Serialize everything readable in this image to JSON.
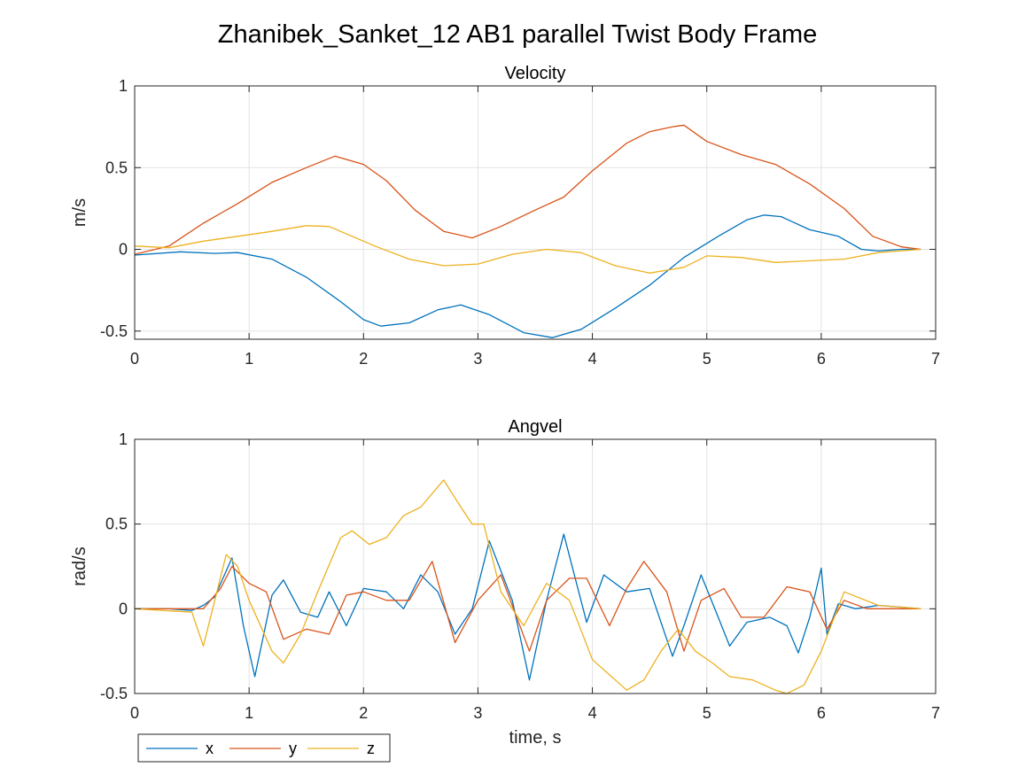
{
  "figure": {
    "title": "Zhanibek_Sanket_12 AB1 parallel Twist Body Frame",
    "legend": {
      "placement": "bottom-left",
      "orientation": "horizontal"
    }
  },
  "colors": {
    "x": "#0072BD",
    "y": "#D95319",
    "z": "#EDB120",
    "grid": "#e3e3e3",
    "axis": "#262626"
  },
  "chart_data": [
    {
      "type": "line",
      "title": "Velocity",
      "xlabel": "",
      "ylabel": "m/s",
      "xlim": [
        0,
        7
      ],
      "ylim": [
        -0.55,
        1
      ],
      "xticks": [
        "0",
        "1",
        "2",
        "3",
        "4",
        "5",
        "6",
        "7"
      ],
      "yticks": [
        "-0.5",
        "0",
        "0.5",
        "1"
      ],
      "grid": true,
      "series": [
        {
          "name": "x",
          "color": "#0072BD",
          "x": [
            0,
            0.4,
            0.7,
            0.9,
            1.2,
            1.5,
            1.8,
            2.0,
            2.15,
            2.4,
            2.65,
            2.85,
            3.1,
            3.4,
            3.65,
            3.9,
            4.2,
            4.5,
            4.8,
            5.1,
            5.35,
            5.5,
            5.65,
            5.9,
            6.15,
            6.35,
            6.5,
            6.7,
            6.87
          ],
          "y": [
            -0.035,
            -0.015,
            -0.025,
            -0.02,
            -0.06,
            -0.17,
            -0.32,
            -0.43,
            -0.47,
            -0.45,
            -0.37,
            -0.34,
            -0.4,
            -0.51,
            -0.54,
            -0.49,
            -0.36,
            -0.22,
            -0.05,
            0.08,
            0.18,
            0.21,
            0.2,
            0.12,
            0.08,
            0.0,
            -0.01,
            0.0,
            0.0
          ]
        },
        {
          "name": "y",
          "color": "#D95319",
          "x": [
            0,
            0.3,
            0.6,
            0.9,
            1.2,
            1.5,
            1.75,
            2.0,
            2.2,
            2.45,
            2.7,
            2.95,
            3.2,
            3.5,
            3.75,
            4.0,
            4.3,
            4.5,
            4.7,
            4.8,
            5.0,
            5.3,
            5.6,
            5.9,
            6.2,
            6.45,
            6.7,
            6.87
          ],
          "y": [
            -0.03,
            0.02,
            0.16,
            0.28,
            0.41,
            0.5,
            0.57,
            0.52,
            0.42,
            0.24,
            0.11,
            0.07,
            0.14,
            0.24,
            0.32,
            0.48,
            0.65,
            0.72,
            0.75,
            0.76,
            0.66,
            0.58,
            0.52,
            0.4,
            0.25,
            0.08,
            0.015,
            0.0
          ]
        },
        {
          "name": "z",
          "color": "#EDB120",
          "x": [
            0,
            0.3,
            0.6,
            0.9,
            1.2,
            1.5,
            1.7,
            1.9,
            2.1,
            2.4,
            2.7,
            3.0,
            3.3,
            3.6,
            3.9,
            4.2,
            4.5,
            4.8,
            5.0,
            5.3,
            5.6,
            5.9,
            6.2,
            6.5,
            6.87
          ],
          "y": [
            0.02,
            0.01,
            0.05,
            0.08,
            0.11,
            0.145,
            0.14,
            0.08,
            0.02,
            -0.06,
            -0.1,
            -0.09,
            -0.03,
            0.0,
            -0.02,
            -0.1,
            -0.145,
            -0.11,
            -0.04,
            -0.05,
            -0.08,
            -0.07,
            -0.06,
            -0.02,
            0.0
          ]
        }
      ]
    },
    {
      "type": "line",
      "title": "Angvel",
      "xlabel": "time, s",
      "ylabel": "rad/s",
      "xlim": [
        0,
        7
      ],
      "ylim": [
        -0.5,
        1
      ],
      "xticks": [
        "0",
        "1",
        "2",
        "3",
        "4",
        "5",
        "6",
        "7"
      ],
      "yticks": [
        "-0.5",
        "0",
        "0.5",
        "1"
      ],
      "grid": true,
      "series": [
        {
          "name": "x",
          "color": "#0072BD",
          "x": [
            0,
            0.3,
            0.5,
            0.6,
            0.7,
            0.85,
            0.95,
            1.05,
            1.2,
            1.3,
            1.45,
            1.6,
            1.7,
            1.85,
            2.0,
            2.2,
            2.35,
            2.5,
            2.65,
            2.8,
            2.95,
            3.1,
            3.3,
            3.45,
            3.6,
            3.75,
            3.95,
            4.1,
            4.3,
            4.5,
            4.7,
            4.8,
            4.95,
            5.1,
            5.2,
            5.35,
            5.55,
            5.7,
            5.8,
            5.9,
            6.0,
            6.05,
            6.15,
            6.3,
            6.5,
            6.87
          ],
          "y": [
            0.0,
            0.0,
            -0.01,
            0.02,
            0.07,
            0.3,
            -0.1,
            -0.4,
            0.08,
            0.17,
            -0.02,
            -0.05,
            0.1,
            -0.1,
            0.12,
            0.1,
            0.0,
            0.2,
            0.1,
            -0.15,
            0.0,
            0.4,
            0.05,
            -0.42,
            0.05,
            0.44,
            -0.08,
            0.2,
            0.1,
            0.12,
            -0.28,
            -0.1,
            0.2,
            -0.05,
            -0.22,
            -0.08,
            -0.05,
            -0.1,
            -0.26,
            -0.05,
            0.24,
            -0.15,
            0.03,
            0.0,
            0.02,
            0.0
          ]
        },
        {
          "name": "y",
          "color": "#D95319",
          "x": [
            0,
            0.4,
            0.6,
            0.75,
            0.85,
            1.0,
            1.15,
            1.3,
            1.5,
            1.7,
            1.85,
            2.0,
            2.2,
            2.4,
            2.6,
            2.8,
            3.0,
            3.2,
            3.45,
            3.6,
            3.8,
            3.95,
            4.15,
            4.3,
            4.45,
            4.65,
            4.8,
            4.95,
            5.15,
            5.3,
            5.5,
            5.7,
            5.9,
            6.05,
            6.2,
            6.4,
            6.87
          ],
          "y": [
            0.0,
            0.0,
            0.0,
            0.12,
            0.25,
            0.15,
            0.1,
            -0.18,
            -0.12,
            -0.15,
            0.08,
            0.1,
            0.05,
            0.05,
            0.28,
            -0.2,
            0.05,
            0.2,
            -0.25,
            0.05,
            0.18,
            0.18,
            -0.1,
            0.12,
            0.28,
            0.1,
            -0.25,
            0.05,
            0.12,
            -0.05,
            -0.05,
            0.13,
            0.1,
            -0.12,
            0.05,
            0.0,
            0.0
          ]
        },
        {
          "name": "z",
          "color": "#EDB120",
          "x": [
            0,
            0.5,
            0.6,
            0.7,
            0.8,
            0.9,
            1.0,
            1.2,
            1.3,
            1.45,
            1.6,
            1.8,
            1.9,
            2.05,
            2.2,
            2.35,
            2.5,
            2.7,
            2.85,
            2.95,
            3.05,
            3.2,
            3.4,
            3.6,
            3.8,
            4.0,
            4.2,
            4.3,
            4.45,
            4.6,
            4.75,
            4.9,
            5.05,
            5.2,
            5.4,
            5.6,
            5.7,
            5.85,
            6.0,
            6.2,
            6.5,
            6.87
          ],
          "y": [
            0.0,
            -0.02,
            -0.22,
            0.05,
            0.32,
            0.25,
            0.05,
            -0.25,
            -0.32,
            -0.15,
            0.1,
            0.42,
            0.46,
            0.38,
            0.42,
            0.55,
            0.6,
            0.76,
            0.6,
            0.5,
            0.5,
            0.1,
            -0.1,
            0.15,
            0.05,
            -0.3,
            -0.42,
            -0.48,
            -0.42,
            -0.25,
            -0.12,
            -0.25,
            -0.32,
            -0.4,
            -0.42,
            -0.48,
            -0.5,
            -0.45,
            -0.25,
            0.1,
            0.02,
            0.0
          ]
        }
      ]
    }
  ]
}
